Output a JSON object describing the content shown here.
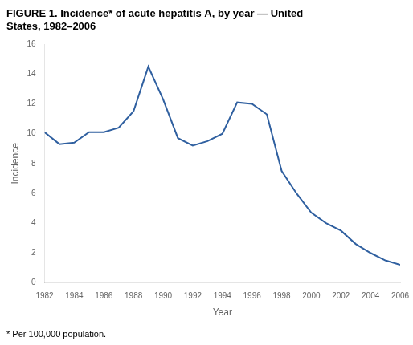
{
  "chart_data": {
    "type": "line",
    "title": "FIGURE 1. Incidence* of acute hepatitis A, by year — United\nStates, 1982–2006",
    "footnote": "* Per 100,000 population.",
    "xlabel": "Year",
    "ylabel": "Incidence",
    "x": [
      1982,
      1983,
      1984,
      1985,
      1986,
      1987,
      1988,
      1989,
      1990,
      1991,
      1992,
      1993,
      1994,
      1995,
      1996,
      1997,
      1998,
      1999,
      2000,
      2001,
      2002,
      2003,
      2004,
      2005,
      2006
    ],
    "values": [
      10.1,
      9.3,
      9.4,
      10.1,
      10.1,
      10.4,
      11.5,
      14.5,
      12.3,
      9.7,
      9.2,
      9.5,
      10.0,
      12.1,
      12.0,
      11.3,
      7.5,
      6.0,
      4.7,
      4.0,
      3.5,
      2.6,
      2.0,
      1.5,
      1.2
    ],
    "color": "#3060a0",
    "xlim": [
      1982,
      2006
    ],
    "xticks": [
      1982,
      1984,
      1986,
      1988,
      1990,
      1992,
      1994,
      1996,
      1998,
      2000,
      2002,
      2004,
      2006
    ],
    "ylim": [
      0,
      16
    ],
    "yticks": [
      0,
      2,
      4,
      6,
      8,
      10,
      12,
      14,
      16
    ],
    "grid": false
  }
}
